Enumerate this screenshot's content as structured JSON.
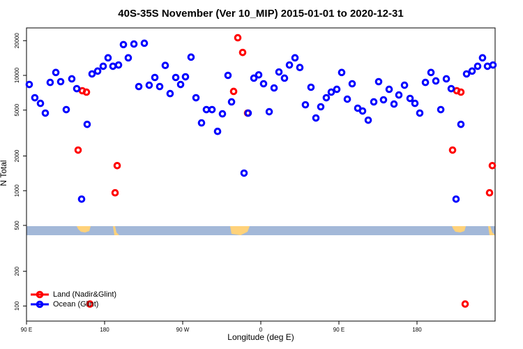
{
  "chart_data": {
    "type": "scatter",
    "title": "40S-35S November (Ver 10_MIP)   2015-01-01 to 2020-12-31",
    "x_label": "Longitude (deg E)",
    "y_label": "N Total",
    "xlim": [
      90,
      630
    ],
    "xticks": [
      {
        "value": 90,
        "label": "90 E"
      },
      {
        "value": 180,
        "label": "180"
      },
      {
        "value": 270,
        "label": "90 W"
      },
      {
        "value": 360,
        "label": "0"
      },
      {
        "value": 450,
        "label": "90 E"
      },
      {
        "value": 540,
        "label": "180"
      }
    ],
    "ylim": [
      74,
      25800
    ],
    "log_y": true,
    "yticks": [
      100,
      200,
      500,
      1000,
      2000,
      5000,
      10000,
      20000
    ],
    "legend": "bottom-left",
    "series": [
      {
        "name": "Land (Nadir&Glint)",
        "color": "#ff0000",
        "x": [
          149.5,
          154.3,
          159.1,
          163.1,
          192.1,
          194.5,
          328.7,
          333.5,
          339.1,
          344.8,
          581.0,
          585.8,
          590.6,
          595.5,
          623.6,
          626.8
        ],
        "values": [
          2250,
          7360,
          7160,
          104,
          959,
          1650,
          7260,
          21200,
          15800,
          4710,
          2250,
          7360,
          7160,
          104,
          959,
          1650
        ]
      },
      {
        "name": "Ocean (Glint)",
        "color": "#0000ff",
        "x": [
          93.2,
          99.6,
          106.1,
          111.7,
          117.3,
          123.8,
          129.4,
          135.8,
          142.2,
          147.9,
          153.5,
          159.9,
          165.5,
          172.0,
          178.4,
          184.0,
          189.6,
          196.1,
          201.7,
          207.3,
          213.8,
          219.4,
          225.8,
          231.4,
          237.9,
          243.5,
          249.9,
          255.5,
          262.0,
          267.6,
          273.2,
          279.6,
          285.3,
          291.7,
          297.3,
          303.8,
          310.2,
          315.8,
          322.2,
          326.3,
          340.7,
          345.5,
          352.0,
          357.6,
          363.2,
          369.7,
          375.3,
          380.9,
          387.3,
          393.0,
          399.4,
          405.0,
          411.4,
          417.8,
          423.5,
          429.1,
          435.5,
          441.2,
          447.6,
          453.2,
          459.7,
          465.3,
          471.7,
          477.3,
          483.8,
          490.2,
          495.8,
          501.4,
          507.9,
          513.5,
          519.1,
          525.6,
          532.0,
          537.6,
          543.2,
          549.7,
          556.1,
          561.7,
          567.4,
          573.8,
          579.4,
          585.0,
          590.6,
          597.1,
          603.5,
          609.9,
          615.5,
          621.2,
          627.6
        ],
        "values": [
          8340,
          6400,
          5720,
          4710,
          8690,
          10600,
          8820,
          5050,
          9330,
          7670,
          845,
          3760,
          10300,
          10900,
          12000,
          14200,
          12000,
          12300,
          18500,
          14200,
          18700,
          8000,
          19000,
          8220,
          9590,
          8000,
          12200,
          6950,
          9590,
          8340,
          9720,
          14400,
          6400,
          3870,
          5050,
          5050,
          3270,
          4640,
          10000,
          5890,
          1420,
          4710,
          9460,
          10100,
          8460,
          4840,
          7780,
          10700,
          9460,
          12300,
          14200,
          11700,
          5560,
          7890,
          4270,
          5340,
          6400,
          7160,
          7570,
          10600,
          6220,
          8460,
          5190,
          4910,
          4090,
          5890,
          8820,
          6140,
          7570,
          5640,
          6760,
          8220,
          6310,
          5720,
          4710,
          8690,
          10600,
          8950,
          5050,
          9330,
          7670,
          845,
          3760,
          10300,
          10900,
          12000,
          14200,
          12000,
          12300
        ]
      }
    ]
  }
}
